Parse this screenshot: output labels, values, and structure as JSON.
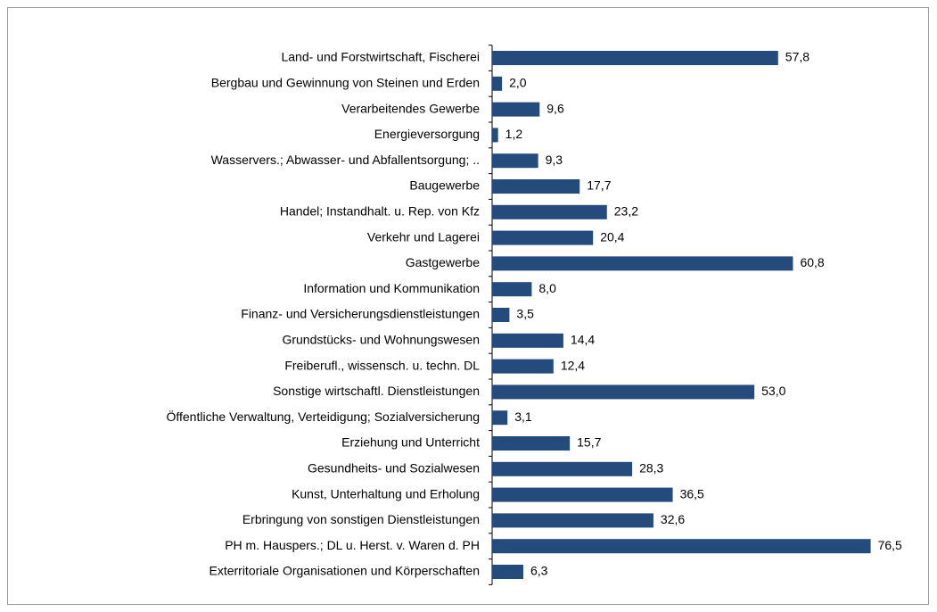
{
  "chart_data": {
    "type": "barh",
    "categories": [
      "Land- und Forstwirtschaft, Fischerei",
      "Bergbau und Gewinnung von Steinen und Erden",
      "Verarbeitendes  Gewerbe",
      "Energieversorgung",
      "Wasservers.; Abwasser- und Abfallentsorgung; ..",
      "Baugewerbe",
      "Handel;  Instandhalt. u. Rep. von Kfz",
      "Verkehr und Lagerei",
      "Gastgewerbe",
      "Information und Kommunikation",
      "Finanz- und Versicherungsdienstleistungen",
      "Grundstücks- und Wohnungswesen",
      "Freiberufl., wissensch. u. techn. DL",
      "Sonstige wirtschaftl. Dienstleistungen",
      "Öffentliche Verwaltung,  Verteidigung; Sozialversicherung",
      "Erziehung und Unterricht",
      "Gesundheits- und Sozialwesen",
      "Kunst, Unterhaltung und Erholung",
      "Erbringung von sonstigen Dienstleistungen",
      "PH m. Hauspers.; DL u. Herst. v. Waren d. PH",
      "Exterritoriale Organisationen und Körperschaften"
    ],
    "values": [
      57.8,
      2.0,
      9.6,
      1.2,
      9.3,
      17.7,
      23.2,
      20.4,
      60.8,
      8.0,
      3.5,
      14.4,
      12.4,
      53.0,
      3.1,
      15.7,
      28.3,
      36.5,
      32.6,
      76.5,
      6.3
    ],
    "value_labels": [
      "57,8",
      "2,0",
      "9,6",
      "1,2",
      "9,3",
      "17,7",
      "23,2",
      "20,4",
      "60,8",
      "8,0",
      "3,5",
      "14,4",
      "12,4",
      "53,0",
      "3,1",
      "15,7",
      "28,3",
      "36,5",
      "32,6",
      "76,5",
      "6,3"
    ],
    "color": "#254a7c",
    "xlim": [
      0,
      80
    ]
  }
}
